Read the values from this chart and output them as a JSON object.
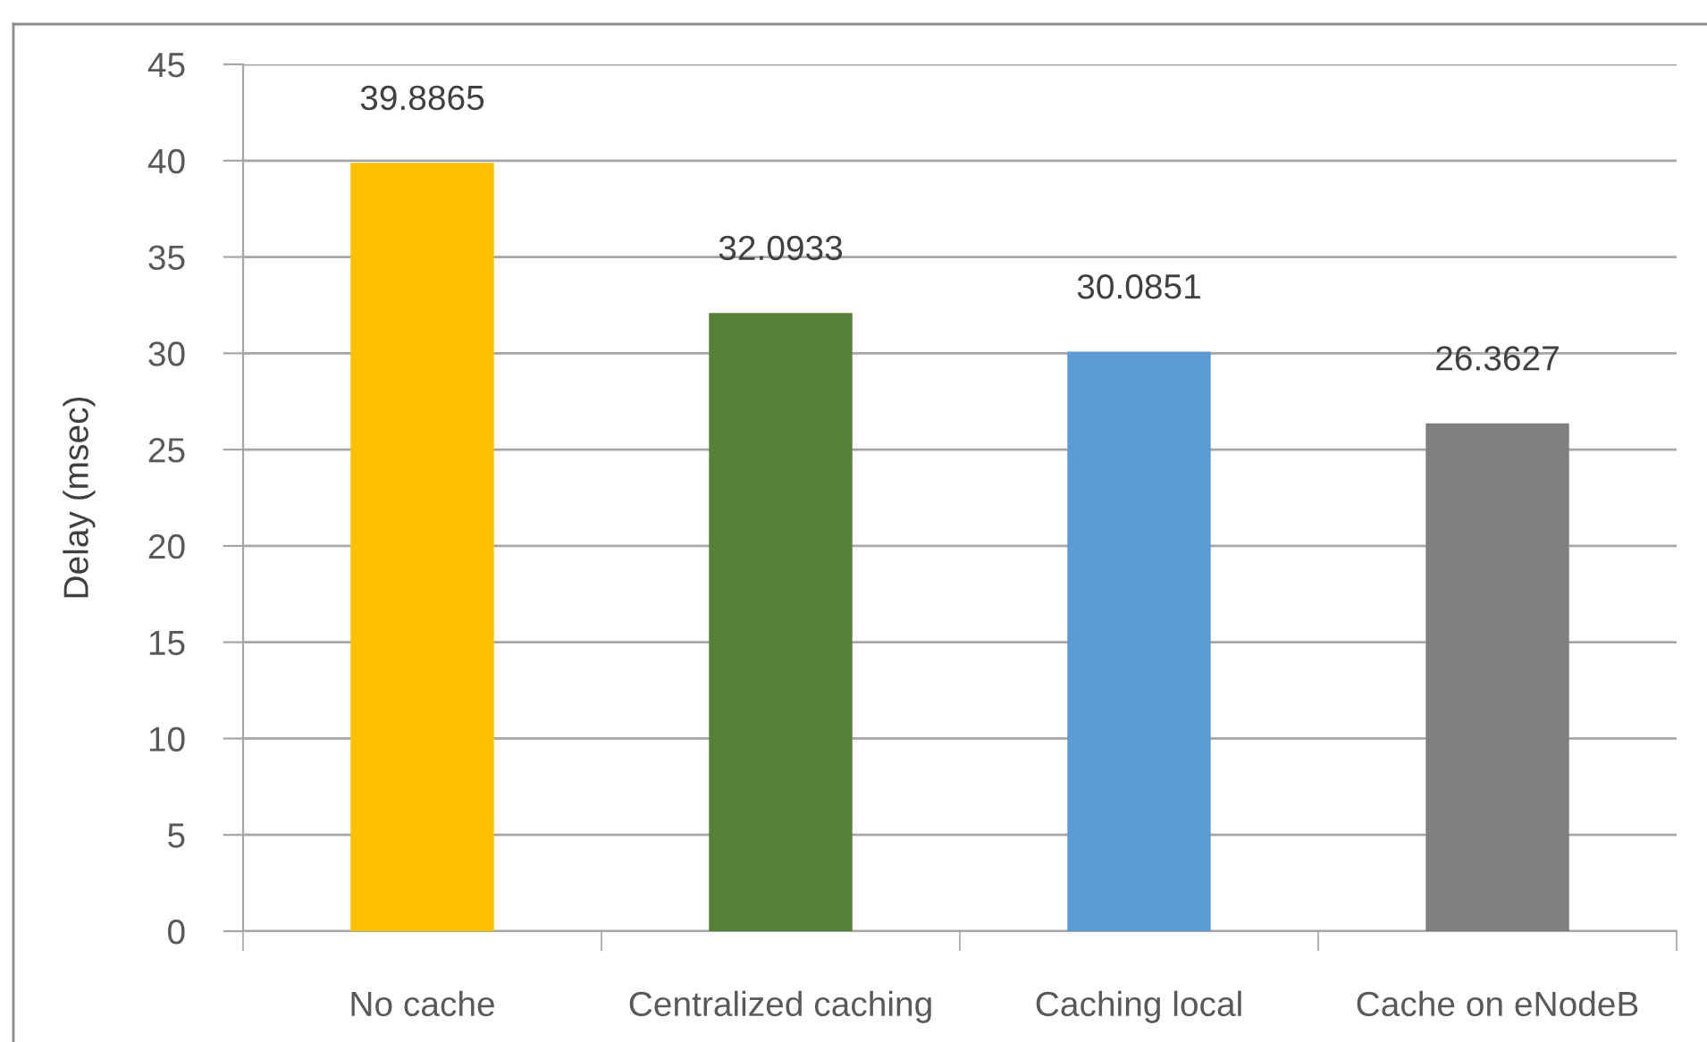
{
  "chart_data": {
    "type": "bar",
    "ylabel": "Delay (msec)",
    "categories": [
      "No cache",
      "Centralized caching",
      "Caching local",
      "Cache on eNodeB"
    ],
    "values": [
      39.8865,
      32.0933,
      30.0851,
      26.3627
    ],
    "colors": [
      "#ffc000",
      "#538135",
      "#5b9bd5",
      "#7f7f7f"
    ],
    "ylim": [
      0,
      45
    ],
    "yticks": [
      0,
      5,
      10,
      15,
      20,
      25,
      30,
      35,
      40,
      45
    ],
    "grid": "y",
    "data_labels": true
  }
}
